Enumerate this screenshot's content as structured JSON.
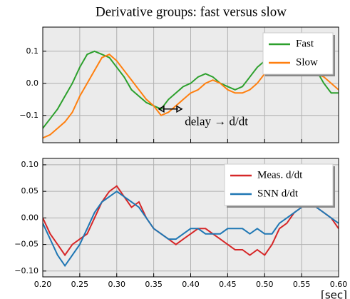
{
  "chart_data": [
    {
      "type": "line",
      "title": "Derivative groups: fast versus slow",
      "annotation": "delay → d/dt",
      "x": [
        0.2,
        0.21,
        0.22,
        0.23,
        0.24,
        0.25,
        0.26,
        0.27,
        0.28,
        0.29,
        0.3,
        0.31,
        0.32,
        0.33,
        0.34,
        0.35,
        0.36,
        0.37,
        0.38,
        0.39,
        0.4,
        0.41,
        0.42,
        0.43,
        0.44,
        0.45,
        0.46,
        0.47,
        0.48,
        0.49,
        0.5,
        0.51,
        0.52,
        0.53,
        0.54,
        0.55,
        0.56,
        0.57,
        0.58,
        0.59,
        0.6
      ],
      "series": [
        {
          "name": "Fast",
          "color": "#2ca02c",
          "values": [
            -0.14,
            -0.11,
            -0.08,
            -0.04,
            0.0,
            0.05,
            0.09,
            0.1,
            0.09,
            0.08,
            0.05,
            0.02,
            -0.02,
            -0.04,
            -0.06,
            -0.07,
            -0.08,
            -0.05,
            -0.03,
            -0.01,
            0.0,
            0.02,
            0.03,
            0.02,
            0.0,
            -0.01,
            -0.02,
            -0.01,
            0.02,
            0.05,
            0.07,
            0.08,
            0.06,
            0.05,
            0.06,
            0.07,
            0.06,
            0.04,
            0.0,
            -0.03,
            -0.03
          ]
        },
        {
          "name": "Slow",
          "color": "#ff7f0e",
          "values": [
            -0.17,
            -0.16,
            -0.14,
            -0.12,
            -0.09,
            -0.04,
            0.0,
            0.04,
            0.08,
            0.09,
            0.07,
            0.04,
            0.01,
            -0.02,
            -0.05,
            -0.07,
            -0.1,
            -0.09,
            -0.07,
            -0.05,
            -0.03,
            -0.02,
            0.0,
            0.01,
            0.0,
            -0.02,
            -0.03,
            -0.03,
            -0.02,
            0.0,
            0.03,
            0.05,
            0.06,
            0.05,
            0.05,
            0.06,
            0.05,
            0.03,
            0.02,
            0.0,
            -0.02
          ]
        }
      ],
      "xlim": [
        0.2,
        0.6
      ],
      "xticks": [
        {
          "value": 0.2,
          "label": "0.20"
        },
        0.25,
        {
          "value": 0.3,
          "label": "0.30"
        },
        0.35,
        {
          "value": 0.4,
          "label": "0.40"
        },
        0.45,
        {
          "value": 0.5,
          "label": "0.50"
        },
        0.55,
        {
          "value": 0.6,
          "label": "0.60"
        }
      ],
      "ylim": [
        -0.185,
        0.175
      ],
      "yticks": [
        {
          "value": -0.1,
          "label": "−0.1"
        },
        {
          "value": 0,
          "label": "0.0"
        },
        0.1
      ],
      "grid": true,
      "legend": "upper right"
    },
    {
      "type": "line",
      "xlabel": "[sec]",
      "x": [
        0.2,
        0.21,
        0.22,
        0.23,
        0.24,
        0.25,
        0.26,
        0.27,
        0.28,
        0.29,
        0.3,
        0.31,
        0.32,
        0.33,
        0.34,
        0.35,
        0.36,
        0.37,
        0.38,
        0.39,
        0.4,
        0.41,
        0.42,
        0.43,
        0.44,
        0.45,
        0.46,
        0.47,
        0.48,
        0.49,
        0.5,
        0.51,
        0.52,
        0.53,
        0.54,
        0.55,
        0.56,
        0.57,
        0.58,
        0.59,
        0.6
      ],
      "series": [
        {
          "name": "Meas. d/dt",
          "color": "#d62728",
          "values": [
            0.0,
            -0.03,
            -0.05,
            -0.07,
            -0.05,
            -0.04,
            -0.03,
            0.0,
            0.03,
            0.05,
            0.06,
            0.04,
            0.02,
            0.03,
            0.0,
            -0.02,
            -0.03,
            -0.04,
            -0.05,
            -0.04,
            -0.03,
            -0.02,
            -0.02,
            -0.03,
            -0.04,
            -0.05,
            -0.06,
            -0.06,
            -0.07,
            -0.06,
            -0.07,
            -0.05,
            -0.02,
            -0.01,
            0.01,
            0.02,
            0.03,
            0.02,
            0.01,
            0.0,
            -0.02
          ]
        },
        {
          "name": "SNN d/dt",
          "color": "#1f77b4",
          "values": [
            -0.01,
            -0.04,
            -0.07,
            -0.09,
            -0.07,
            -0.05,
            -0.02,
            0.01,
            0.03,
            0.04,
            0.05,
            0.04,
            0.03,
            0.02,
            0.0,
            -0.02,
            -0.03,
            -0.04,
            -0.04,
            -0.03,
            -0.02,
            -0.02,
            -0.03,
            -0.03,
            -0.03,
            -0.02,
            -0.02,
            -0.02,
            -0.03,
            -0.02,
            -0.03,
            -0.03,
            -0.01,
            0.0,
            0.01,
            0.02,
            0.03,
            0.02,
            0.01,
            0.0,
            -0.01
          ]
        }
      ],
      "xlim": [
        0.2,
        0.6
      ],
      "xticks": [
        {
          "value": 0.2,
          "label": "0.20"
        },
        0.25,
        {
          "value": 0.3,
          "label": "0.30"
        },
        0.35,
        {
          "value": 0.4,
          "label": "0.40"
        },
        0.45,
        {
          "value": 0.5,
          "label": "0.50"
        },
        0.55,
        {
          "value": 0.6,
          "label": "0.60"
        }
      ],
      "ylim": [
        -0.111,
        0.112
      ],
      "yticks": [
        {
          "value": -0.1,
          "label": "−0.10"
        },
        {
          "value": -0.05,
          "label": "−0.05"
        },
        {
          "value": 0,
          "label": "0.00"
        },
        0.05,
        {
          "value": 0.1,
          "label": "0.10"
        }
      ],
      "grid": true,
      "legend": "upper right"
    }
  ]
}
